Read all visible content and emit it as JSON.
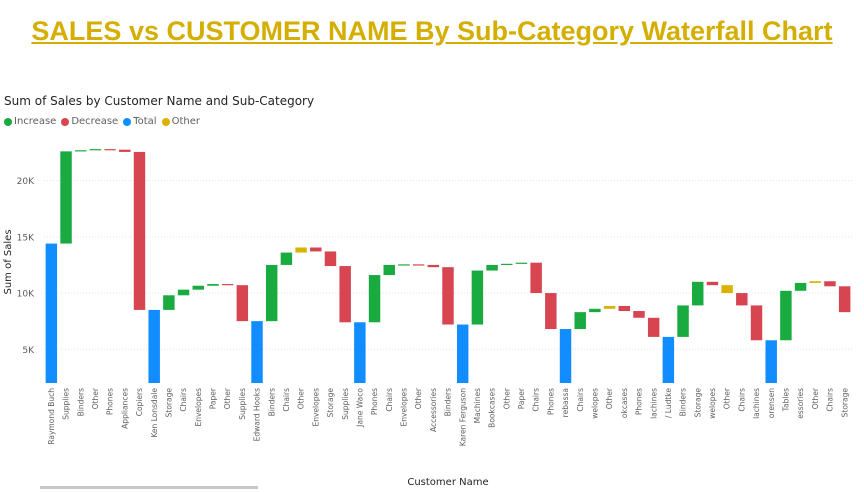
{
  "page": {
    "title": "SALES vs CUSTOMER NAME By Sub-Category Waterfall Chart"
  },
  "chart_data": {
    "type": "waterfall",
    "title": "Sum of Sales by Customer Name and Sub-Category",
    "xlabel": "Customer Name",
    "ylabel": "Sum of Sales",
    "ylim": [
      2000,
      24500
    ],
    "yticks": [
      {
        "value": 5000,
        "label": "5K"
      },
      {
        "value": 10000,
        "label": "10K"
      },
      {
        "value": 15000,
        "label": "15K"
      },
      {
        "value": 20000,
        "label": "20K"
      }
    ],
    "gridlines": true,
    "legend": {
      "position": "top-left",
      "items": [
        {
          "name": "Increase",
          "color": "#1aab40"
        },
        {
          "name": "Decrease",
          "color": "#d64550"
        },
        {
          "name": "Total",
          "color": "#118dff"
        },
        {
          "name": "Other",
          "color": "#d9b300"
        }
      ]
    },
    "bars": [
      {
        "label": "Raymond Buch",
        "start": 0,
        "end": 14400,
        "kind": "total"
      },
      {
        "label": "Supplies",
        "start": 14400,
        "end": 22600,
        "kind": "increase"
      },
      {
        "label": "Binders",
        "start": 22600,
        "end": 22700,
        "kind": "increase"
      },
      {
        "label": "Other",
        "start": 22700,
        "end": 22800,
        "kind": "increase"
      },
      {
        "label": "Phones",
        "start": 22800,
        "end": 22750,
        "kind": "decrease"
      },
      {
        "label": "Appliances",
        "start": 22750,
        "end": 22550,
        "kind": "decrease"
      },
      {
        "label": "Copiers",
        "start": 22550,
        "end": 8500,
        "kind": "decrease"
      },
      {
        "label": "Ken Lonsdale",
        "start": 0,
        "end": 8500,
        "kind": "total"
      },
      {
        "label": "Storage",
        "start": 8500,
        "end": 9800,
        "kind": "increase"
      },
      {
        "label": "Chairs",
        "start": 9800,
        "end": 10300,
        "kind": "increase"
      },
      {
        "label": "Envelopes",
        "start": 10300,
        "end": 10650,
        "kind": "increase"
      },
      {
        "label": "Paper",
        "start": 10650,
        "end": 10800,
        "kind": "increase"
      },
      {
        "label": "Other",
        "start": 10800,
        "end": 10700,
        "kind": "decrease"
      },
      {
        "label": "Supplies",
        "start": 10700,
        "end": 7500,
        "kind": "decrease"
      },
      {
        "label": "Edward Hooks",
        "start": 0,
        "end": 7500,
        "kind": "total"
      },
      {
        "label": "Binders",
        "start": 7500,
        "end": 12500,
        "kind": "increase"
      },
      {
        "label": "Chairs",
        "start": 12500,
        "end": 13600,
        "kind": "increase"
      },
      {
        "label": "Other",
        "start": 13600,
        "end": 14050,
        "kind": "other"
      },
      {
        "label": "Envelopes",
        "start": 14050,
        "end": 13700,
        "kind": "decrease"
      },
      {
        "label": "Storage",
        "start": 13700,
        "end": 12400,
        "kind": "decrease"
      },
      {
        "label": "Supplies",
        "start": 12400,
        "end": 7400,
        "kind": "decrease"
      },
      {
        "label": "Jane Waco",
        "start": 0,
        "end": 7400,
        "kind": "total"
      },
      {
        "label": "Phones",
        "start": 7400,
        "end": 11600,
        "kind": "increase"
      },
      {
        "label": "Chairs",
        "start": 11600,
        "end": 12500,
        "kind": "increase"
      },
      {
        "label": "Envelopes",
        "start": 12500,
        "end": 12550,
        "kind": "increase"
      },
      {
        "label": "Other",
        "start": 12550,
        "end": 12500,
        "kind": "decrease"
      },
      {
        "label": "Accessories",
        "start": 12500,
        "end": 12300,
        "kind": "decrease"
      },
      {
        "label": "Binders",
        "start": 12300,
        "end": 7200,
        "kind": "decrease"
      },
      {
        "label": "Karen Ferguson",
        "start": 0,
        "end": 7200,
        "kind": "total"
      },
      {
        "label": "Machines",
        "start": 7200,
        "end": 12000,
        "kind": "increase"
      },
      {
        "label": "Bookcases",
        "start": 12000,
        "end": 12500,
        "kind": "increase"
      },
      {
        "label": "Other",
        "start": 12500,
        "end": 12600,
        "kind": "increase"
      },
      {
        "label": "Paper",
        "start": 12600,
        "end": 12700,
        "kind": "increase"
      },
      {
        "label": "Chairs",
        "start": 12700,
        "end": 10000,
        "kind": "decrease"
      },
      {
        "label": "Phones",
        "start": 10000,
        "end": 6800,
        "kind": "decrease"
      },
      {
        "label": "rebassa",
        "start": 0,
        "end": 6800,
        "kind": "total"
      },
      {
        "label": "Chairs",
        "start": 6800,
        "end": 8300,
        "kind": "increase"
      },
      {
        "label": "welopes",
        "start": 8300,
        "end": 8600,
        "kind": "increase"
      },
      {
        "label": "Other",
        "start": 8600,
        "end": 8850,
        "kind": "other"
      },
      {
        "label": "okcases",
        "start": 8850,
        "end": 8400,
        "kind": "decrease"
      },
      {
        "label": "Phones",
        "start": 8400,
        "end": 7800,
        "kind": "decrease"
      },
      {
        "label": "lachines",
        "start": 7800,
        "end": 6100,
        "kind": "decrease"
      },
      {
        "label": "/ Ludtke",
        "start": 0,
        "end": 6100,
        "kind": "total"
      },
      {
        "label": "Binders",
        "start": 6100,
        "end": 8900,
        "kind": "increase"
      },
      {
        "label": "Storage",
        "start": 8900,
        "end": 11000,
        "kind": "increase"
      },
      {
        "label": "welopes",
        "start": 11000,
        "end": 10700,
        "kind": "decrease"
      },
      {
        "label": "Other",
        "start": 10700,
        "end": 10000,
        "kind": "other"
      },
      {
        "label": "Chairs",
        "start": 10000,
        "end": 8900,
        "kind": "decrease"
      },
      {
        "label": "lachines",
        "start": 8900,
        "end": 5800,
        "kind": "decrease"
      },
      {
        "label": "orensen",
        "start": 0,
        "end": 5800,
        "kind": "total"
      },
      {
        "label": "Tables",
        "start": 5800,
        "end": 10200,
        "kind": "increase"
      },
      {
        "label": "essories",
        "start": 10200,
        "end": 10900,
        "kind": "increase"
      },
      {
        "label": "Other",
        "start": 10900,
        "end": 11050,
        "kind": "other"
      },
      {
        "label": "Chairs",
        "start": 11050,
        "end": 10600,
        "kind": "decrease"
      },
      {
        "label": "Storage",
        "start": 10600,
        "end": 8300,
        "kind": "decrease"
      }
    ]
  }
}
